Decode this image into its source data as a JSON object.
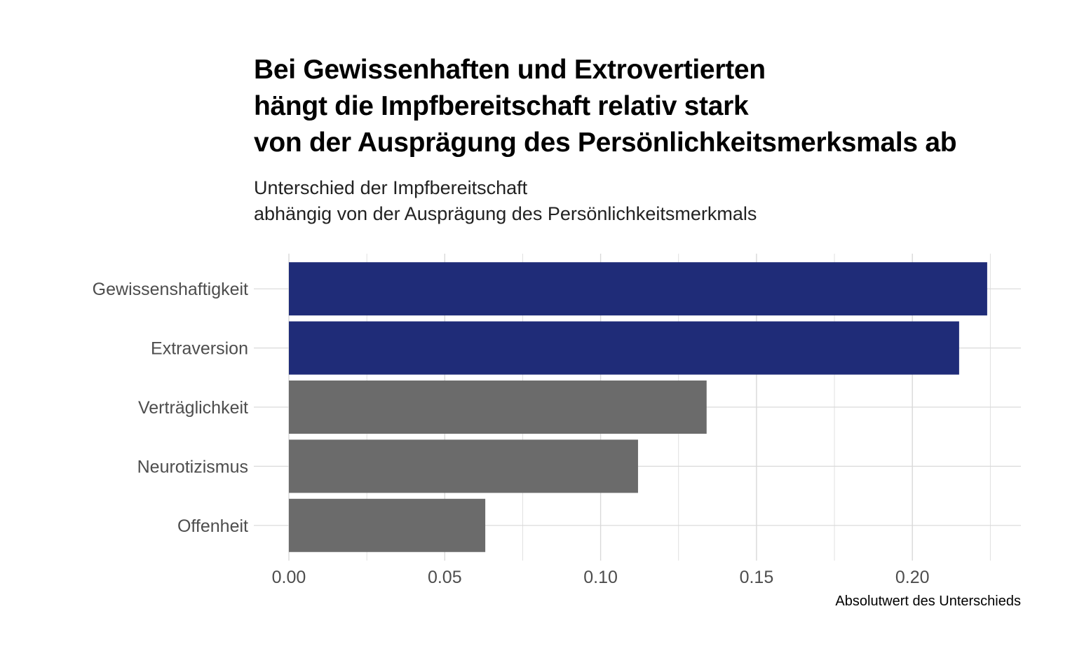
{
  "chart_data": {
    "type": "bar",
    "orientation": "horizontal",
    "title_lines": [
      "Bei Gewissenhaften und Extrovertierten",
      "hängt die Impfbereitschaft relativ stark",
      "von der Ausprägung des Persönlichkeitsmerksmals ab"
    ],
    "subtitle_lines": [
      "Unterschied der Impfbereitschaft",
      "abhängig von der Ausprägung des Persönlichkeitsmerkmals"
    ],
    "categories": [
      "Gewissenshaftigkeit",
      "Extraversion",
      "Verträglichkeit",
      "Neurotizismus",
      "Offenheit"
    ],
    "values": [
      0.224,
      0.215,
      0.134,
      0.112,
      0.063
    ],
    "highlighted": [
      true,
      true,
      false,
      false,
      false
    ],
    "xlabel": "Absolutwert des Unterschieds",
    "ylabel": "",
    "xlim": [
      0,
      0.2325
    ],
    "xticks": [
      "0.00",
      "0.05",
      "0.10",
      "0.15",
      "0.20"
    ],
    "grid": true,
    "legend": "none",
    "colors": {
      "highlight": "#1f2c78",
      "default": "#6b6b6b",
      "grid": "#d9d9d9"
    }
  }
}
